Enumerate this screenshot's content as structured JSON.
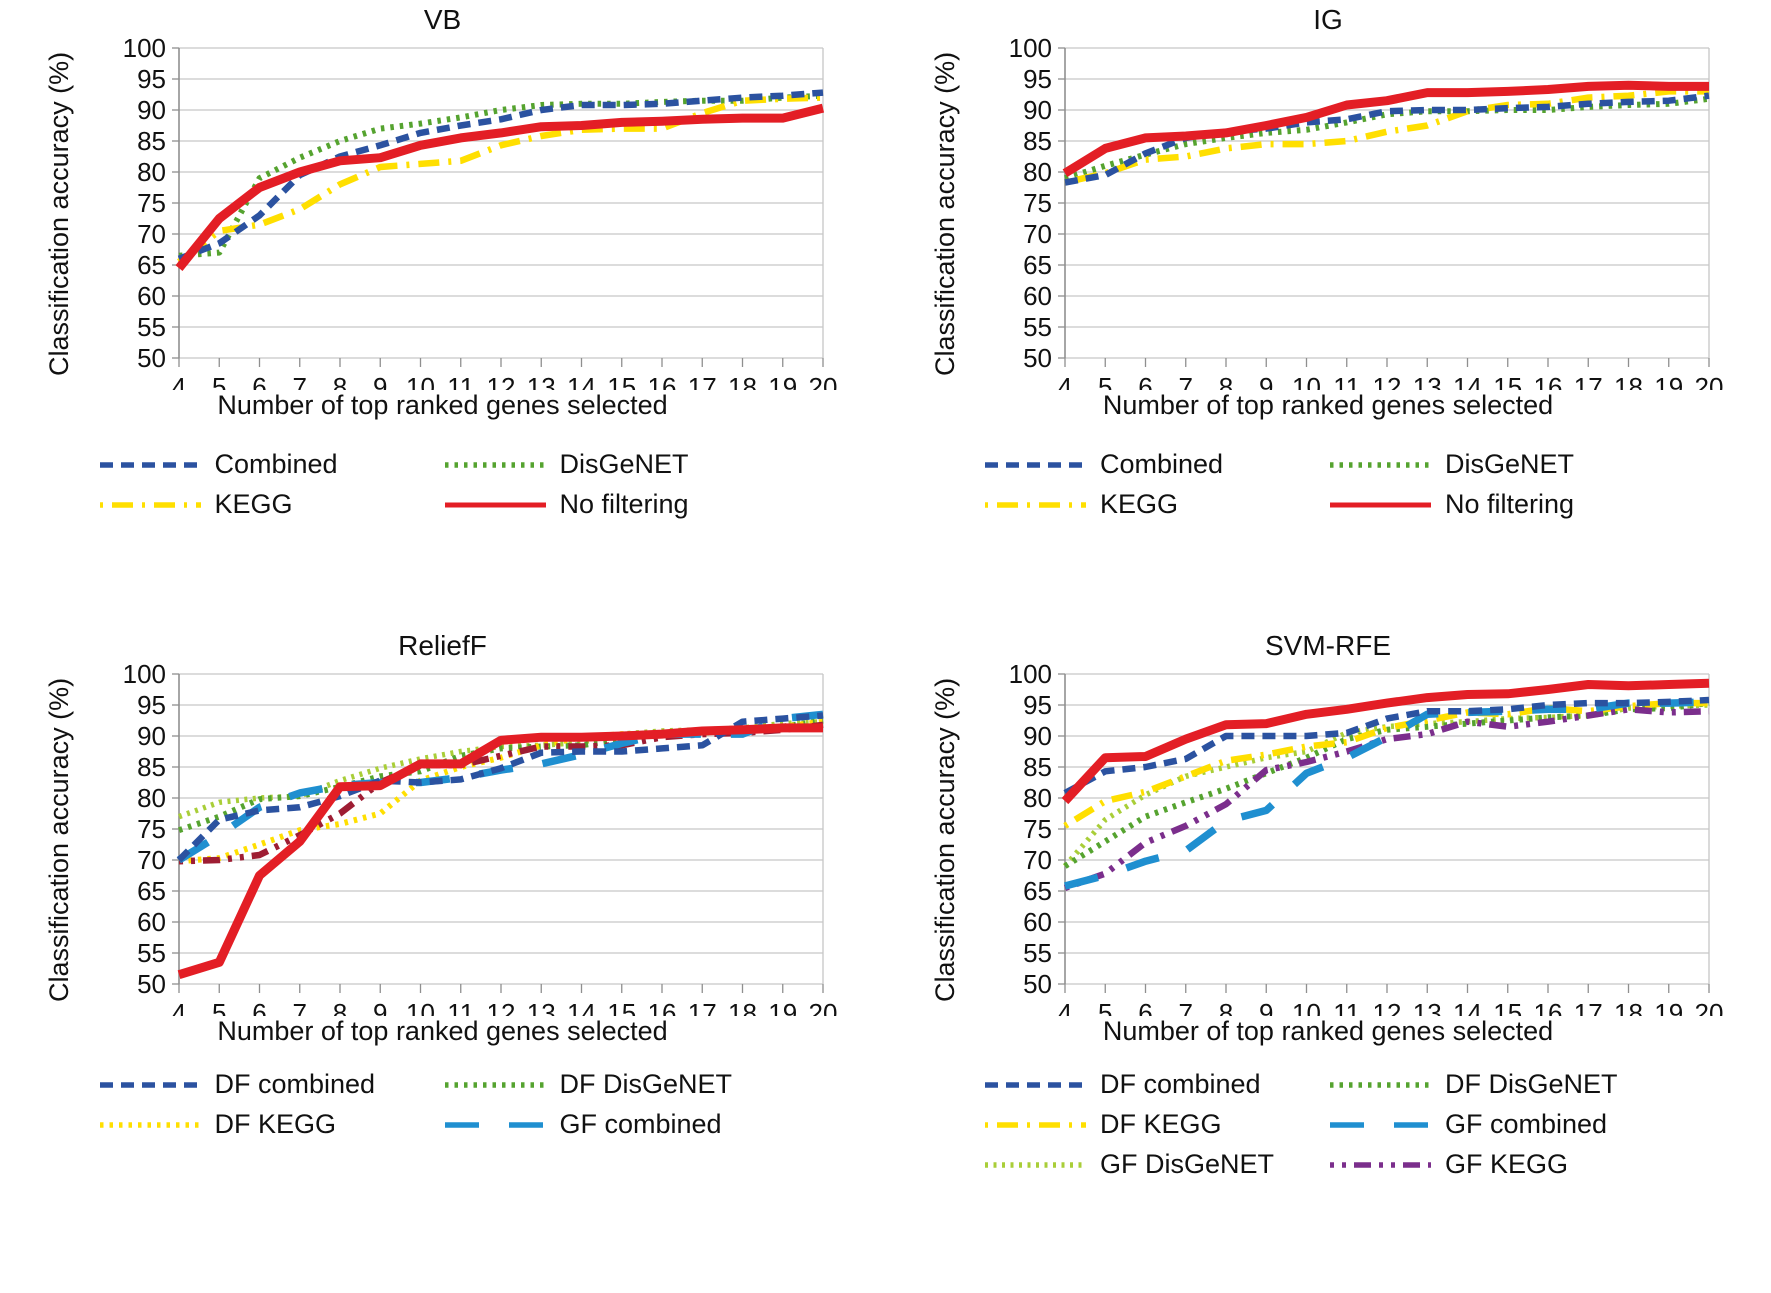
{
  "figure": {
    "xlabel": "Number of top ranked genes selected",
    "ylabel": "Classification accuracy (%)",
    "x_ticks": [
      4,
      5,
      6,
      7,
      8,
      9,
      10,
      11,
      12,
      13,
      14,
      15,
      16,
      17,
      18,
      19,
      20
    ],
    "y_ticks": [
      50,
      55,
      60,
      65,
      70,
      75,
      80,
      85,
      90,
      95,
      100
    ]
  },
  "chart_data": [
    {
      "type": "line",
      "title": "VB",
      "xlabel": "Number of top ranked genes selected",
      "ylabel": "Classification accuracy (%)",
      "x": [
        4,
        5,
        6,
        7,
        8,
        9,
        10,
        11,
        12,
        13,
        14,
        15,
        16,
        17,
        18,
        19,
        20
      ],
      "ylim": [
        50,
        100
      ],
      "y_ticks": [
        50,
        55,
        60,
        65,
        70,
        75,
        80,
        85,
        90,
        95,
        100
      ],
      "grid": true,
      "legend_position": "below",
      "legend": [
        "Combined",
        "DisGeNET",
        "KEGG",
        "No filtering"
      ],
      "series": [
        {
          "name": "DisGeNET",
          "color": "#55A32F",
          "style": "dots",
          "values": [
            66.5,
            67,
            79,
            82.3,
            85,
            87,
            87.8,
            88.8,
            90,
            90.8,
            91,
            91,
            91.3,
            91.5,
            91.5,
            92,
            92.3
          ]
        },
        {
          "name": "KEGG",
          "color": "#FFDF00",
          "style": "dash-dot",
          "values": [
            65.5,
            70.5,
            71.5,
            74,
            78,
            80.8,
            81.3,
            81.8,
            84.3,
            85.8,
            86.8,
            87,
            87,
            89.5,
            91.5,
            91.8,
            92
          ]
        },
        {
          "name": "Combined",
          "color": "#2B52A0",
          "style": "dash",
          "values": [
            66,
            68.5,
            73,
            79.5,
            82.5,
            84.3,
            86.3,
            87.5,
            88.5,
            90,
            90.8,
            90.8,
            91,
            91.5,
            92,
            92.3,
            92.8
          ]
        },
        {
          "name": "No filtering",
          "color": "#E31E25",
          "style": "solid",
          "values": [
            64.5,
            72.5,
            77.5,
            80,
            81.8,
            82.3,
            84.3,
            85.5,
            86.3,
            87.3,
            87.5,
            88,
            88.2,
            88.5,
            88.7,
            88.7,
            90.3
          ]
        }
      ]
    },
    {
      "type": "line",
      "title": "IG",
      "xlabel": "Number of top ranked genes selected",
      "ylabel": "Classification accuracy (%)",
      "x": [
        4,
        5,
        6,
        7,
        8,
        9,
        10,
        11,
        12,
        13,
        14,
        15,
        16,
        17,
        18,
        19,
        20
      ],
      "ylim": [
        50,
        100
      ],
      "y_ticks": [
        50,
        55,
        60,
        65,
        70,
        75,
        80,
        85,
        90,
        95,
        100
      ],
      "grid": true,
      "legend_position": "below",
      "legend": [
        "Combined",
        "DisGeNET",
        "KEGG",
        "No filtering"
      ],
      "series": [
        {
          "name": "DisGeNET",
          "color": "#55A32F",
          "style": "dots",
          "values": [
            79,
            81,
            82.8,
            84.5,
            85.5,
            86.3,
            86.8,
            88,
            89.3,
            89.8,
            89.8,
            90,
            90,
            90.5,
            90.8,
            91,
            91.8
          ]
        },
        {
          "name": "KEGG",
          "color": "#FFDF00",
          "style": "dash-dot",
          "values": [
            78.3,
            79.8,
            82,
            82.5,
            83.8,
            84.5,
            84.5,
            85,
            86.5,
            87.5,
            89.8,
            90.8,
            91,
            92,
            92.3,
            93,
            93
          ]
        },
        {
          "name": "Combined",
          "color": "#2B52A0",
          "style": "dash",
          "values": [
            78.3,
            79.5,
            83,
            85.5,
            86.5,
            87,
            88,
            88.5,
            89.8,
            90,
            90,
            90.3,
            90.5,
            91,
            91.3,
            91.5,
            92.3
          ]
        },
        {
          "name": "No filtering",
          "color": "#E31E25",
          "style": "solid",
          "values": [
            79.8,
            83.8,
            85.5,
            85.8,
            86.3,
            87.5,
            88.8,
            90.8,
            91.5,
            92.8,
            92.8,
            93,
            93.3,
            93.8,
            94,
            93.8,
            93.8
          ]
        }
      ]
    },
    {
      "type": "line",
      "title": "ReliefF",
      "xlabel": "Number of top ranked genes selected",
      "ylabel": "Classification accuracy (%)",
      "x": [
        4,
        5,
        6,
        7,
        8,
        9,
        10,
        11,
        12,
        13,
        14,
        15,
        16,
        17,
        18,
        19,
        20
      ],
      "ylim": [
        50,
        100
      ],
      "y_ticks": [
        50,
        55,
        60,
        65,
        70,
        75,
        80,
        85,
        90,
        95,
        100
      ],
      "grid": true,
      "legend_position": "below",
      "legend": [
        "DF combined",
        "DF DisGeNET",
        "DF KEGG",
        "GF combined"
      ],
      "series": [
        {
          "name": "GF DisGeNET",
          "color": "#A9CE38",
          "style": "fine-dots",
          "values": [
            77,
            79.3,
            80,
            80.3,
            82.8,
            84.8,
            86.3,
            87.5,
            88.3,
            88.5,
            89,
            90.3,
            90.8,
            91,
            91.3,
            92,
            92.3
          ]
        },
        {
          "name": "DF DisGeNET",
          "color": "#55A32F",
          "style": "dots",
          "values": [
            74.8,
            77,
            79.8,
            80.3,
            81.8,
            83.5,
            84.3,
            86.8,
            88,
            88.3,
            88.5,
            89.5,
            90.5,
            90.8,
            91,
            91.5,
            92.5
          ]
        },
        {
          "name": "DF KEGG",
          "color": "#FFDF00",
          "style": "dots",
          "values": [
            69.8,
            70.3,
            72.5,
            74.8,
            75.8,
            77.5,
            82.8,
            85,
            86.5,
            88.5,
            89.8,
            90.3,
            90.3,
            90.5,
            91,
            91.5,
            92.3
          ]
        },
        {
          "name": "GF KEGG",
          "color": "#9E1D33",
          "style": "dash-dot-dot",
          "values": [
            69.8,
            70,
            70.8,
            74,
            77.5,
            82.5,
            85.3,
            85.3,
            86.8,
            88.3,
            88.3,
            88.5,
            89.8,
            90.3,
            90.5,
            91,
            91.8
          ]
        },
        {
          "name": "GF combined",
          "color": "#1F8FD0",
          "style": "long-dash",
          "values": [
            70,
            74,
            78.5,
            80.8,
            82,
            82.5,
            82.5,
            83.3,
            84.5,
            85.5,
            87,
            88.8,
            90.3,
            90.3,
            90.3,
            92.8,
            93.5
          ]
        },
        {
          "name": "DF combined",
          "color": "#2B52A0",
          "style": "dash",
          "values": [
            70,
            76.5,
            78,
            78.5,
            80.3,
            82.8,
            82.5,
            83,
            84.8,
            87.3,
            87.5,
            87.5,
            88,
            88.5,
            92.3,
            92.8,
            93.3
          ]
        },
        {
          "name": "No filtering",
          "color": "#E31E25",
          "style": "solid",
          "values": [
            51.5,
            53.5,
            67.5,
            73,
            81.8,
            82,
            85.5,
            85.5,
            89.3,
            89.8,
            89.8,
            90,
            90.3,
            90.8,
            91,
            91.3,
            91.3
          ]
        }
      ]
    },
    {
      "type": "line",
      "title": "SVM-RFE",
      "xlabel": "Number of top ranked genes selected",
      "ylabel": "Classification accuracy (%)",
      "x": [
        4,
        5,
        6,
        7,
        8,
        9,
        10,
        11,
        12,
        13,
        14,
        15,
        16,
        17,
        18,
        19,
        20
      ],
      "ylim": [
        50,
        100
      ],
      "y_ticks": [
        50,
        55,
        60,
        65,
        70,
        75,
        80,
        85,
        90,
        95,
        100
      ],
      "grid": true,
      "legend_position": "below",
      "legend": [
        "DF combined",
        "DF DisGeNET",
        "DF KEGG",
        "GF combined",
        "GF DisGeNET",
        "GF KEGG"
      ],
      "series": [
        {
          "name": "GF DisGeNET",
          "color": "#A9CE38",
          "style": "fine-dots",
          "values": [
            69,
            76.5,
            80.5,
            83.5,
            85,
            86.5,
            87.5,
            90.5,
            91.5,
            92,
            92.3,
            92.8,
            93,
            93.3,
            94.5,
            94.8,
            95
          ]
        },
        {
          "name": "DF DisGeNET",
          "color": "#55A32F",
          "style": "dots",
          "values": [
            69,
            73,
            77,
            79.3,
            81.5,
            84,
            86.5,
            89.5,
            91,
            91.5,
            92,
            92.5,
            93,
            93.3,
            94.3,
            94.5,
            95.3
          ]
        },
        {
          "name": "DF KEGG",
          "color": "#FFDF00",
          "style": "dash-dot",
          "values": [
            75.5,
            79.5,
            81,
            83.5,
            86,
            87,
            88.3,
            89,
            91.3,
            92.5,
            93.8,
            93.5,
            94.5,
            94,
            94.8,
            95.3,
            95.3
          ]
        },
        {
          "name": "GF KEGG",
          "color": "#7B2E8C",
          "style": "dash-dot-dot",
          "values": [
            65.5,
            67.8,
            72.8,
            75.5,
            79,
            84.5,
            85.8,
            87.5,
            89.5,
            90.3,
            92.3,
            91.5,
            92.3,
            93.3,
            94.3,
            93.8,
            94
          ]
        },
        {
          "name": "GF combined",
          "color": "#1F8FD0",
          "style": "long-dash",
          "values": [
            65.8,
            67.5,
            69.8,
            71.5,
            76.3,
            78,
            84,
            86.5,
            89.8,
            93.5,
            93.8,
            94,
            94.3,
            94.3,
            95.3,
            95.3,
            95.5
          ]
        },
        {
          "name": "DF combined",
          "color": "#2B52A0",
          "style": "dash",
          "values": [
            80.8,
            84.3,
            85,
            86.3,
            90,
            90,
            90,
            90.5,
            92.8,
            94,
            94,
            94.3,
            95,
            95.3,
            95.3,
            95.5,
            95.8
          ]
        },
        {
          "name": "No filtering",
          "color": "#E31E25",
          "style": "solid",
          "values": [
            79.5,
            86.5,
            86.7,
            89.5,
            91.8,
            92,
            93.5,
            94.3,
            95.3,
            96.2,
            96.7,
            96.8,
            97.5,
            98.3,
            98.1,
            98.3,
            98.5
          ]
        }
      ]
    }
  ]
}
